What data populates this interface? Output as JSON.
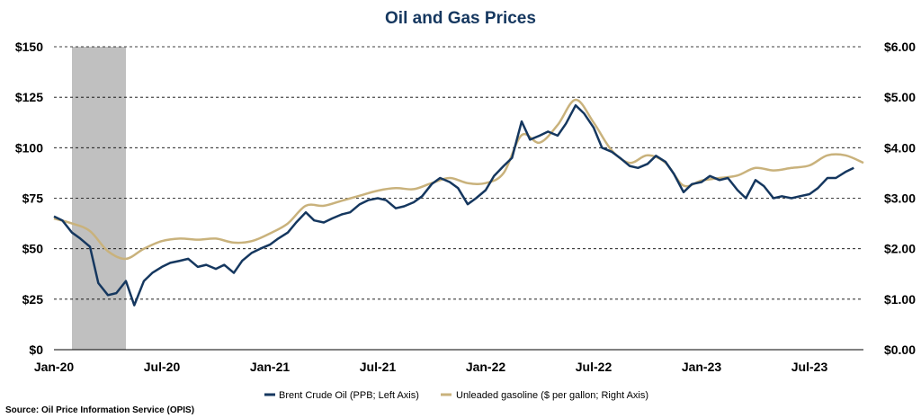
{
  "chart_data": {
    "type": "line",
    "title": "Oil and Gas Prices",
    "source": "Source: Oil Price Information Service (OPIS)",
    "x_tick_labels": [
      "Jan-20",
      "Jul-20",
      "Jan-21",
      "Jul-21",
      "Jan-22",
      "Jul-22",
      "Jan-23",
      "Jul-23"
    ],
    "y_left": {
      "ticks": [
        "$0",
        "$25",
        "$50",
        "$75",
        "$100",
        "$125",
        "$150"
      ],
      "range": [
        0,
        150
      ]
    },
    "y_right": {
      "ticks": [
        "$0.00",
        "$1.00",
        "$2.00",
        "$3.00",
        "$4.00",
        "$5.00",
        "$6.00"
      ],
      "range": [
        0,
        6
      ]
    },
    "x_range": [
      "2020-01",
      "2023-10"
    ],
    "shaded_period": {
      "start": "2020-02",
      "end": "2020-05"
    },
    "grid": "horizontal dashed",
    "legend_placement": "bottom",
    "colors": {
      "brent": "#15375f",
      "gasoline": "#c9b27c",
      "shade": "#c0c0c0"
    },
    "series": [
      {
        "name": "Brent Crude Oil (PPB; Left Axis)",
        "axis": "left",
        "points": [
          [
            "2020-01-01",
            66
          ],
          [
            "2020-01-15",
            64
          ],
          [
            "2020-02-01",
            58
          ],
          [
            "2020-02-15",
            55
          ],
          [
            "2020-03-01",
            51
          ],
          [
            "2020-03-15",
            33
          ],
          [
            "2020-04-01",
            27
          ],
          [
            "2020-04-15",
            28
          ],
          [
            "2020-05-01",
            34
          ],
          [
            "2020-05-15",
            22
          ],
          [
            "2020-06-01",
            34
          ],
          [
            "2020-06-15",
            38
          ],
          [
            "2020-07-01",
            41
          ],
          [
            "2020-07-15",
            43
          ],
          [
            "2020-08-01",
            44
          ],
          [
            "2020-08-15",
            45
          ],
          [
            "2020-09-01",
            41
          ],
          [
            "2020-09-15",
            42
          ],
          [
            "2020-10-01",
            40
          ],
          [
            "2020-10-15",
            42
          ],
          [
            "2020-11-01",
            38
          ],
          [
            "2020-11-15",
            44
          ],
          [
            "2020-12-01",
            48
          ],
          [
            "2020-12-15",
            50
          ],
          [
            "2021-01-01",
            52
          ],
          [
            "2021-01-15",
            55
          ],
          [
            "2021-02-01",
            58
          ],
          [
            "2021-02-15",
            63
          ],
          [
            "2021-03-01",
            68
          ],
          [
            "2021-03-15",
            64
          ],
          [
            "2021-04-01",
            63
          ],
          [
            "2021-04-15",
            65
          ],
          [
            "2021-05-01",
            67
          ],
          [
            "2021-05-15",
            68
          ],
          [
            "2021-06-01",
            72
          ],
          [
            "2021-06-15",
            74
          ],
          [
            "2021-07-01",
            75
          ],
          [
            "2021-07-15",
            74
          ],
          [
            "2021-08-01",
            70
          ],
          [
            "2021-08-15",
            71
          ],
          [
            "2021-09-01",
            73
          ],
          [
            "2021-09-15",
            76
          ],
          [
            "2021-10-01",
            82
          ],
          [
            "2021-10-15",
            85
          ],
          [
            "2021-11-01",
            83
          ],
          [
            "2021-11-15",
            80
          ],
          [
            "2021-12-01",
            72
          ],
          [
            "2021-12-15",
            75
          ],
          [
            "2022-01-01",
            79
          ],
          [
            "2022-01-15",
            86
          ],
          [
            "2022-02-01",
            91
          ],
          [
            "2022-02-15",
            95
          ],
          [
            "2022-03-01",
            113
          ],
          [
            "2022-03-15",
            104
          ],
          [
            "2022-04-01",
            106
          ],
          [
            "2022-04-15",
            108
          ],
          [
            "2022-05-01",
            106
          ],
          [
            "2022-05-15",
            112
          ],
          [
            "2022-06-01",
            121
          ],
          [
            "2022-06-15",
            117
          ],
          [
            "2022-07-01",
            110
          ],
          [
            "2022-07-15",
            100
          ],
          [
            "2022-08-01",
            98
          ],
          [
            "2022-08-15",
            95
          ],
          [
            "2022-09-01",
            91
          ],
          [
            "2022-09-15",
            90
          ],
          [
            "2022-10-01",
            92
          ],
          [
            "2022-10-15",
            96
          ],
          [
            "2022-11-01",
            93
          ],
          [
            "2022-11-15",
            87
          ],
          [
            "2022-12-01",
            78
          ],
          [
            "2022-12-15",
            82
          ],
          [
            "2023-01-01",
            83
          ],
          [
            "2023-01-15",
            86
          ],
          [
            "2023-02-01",
            84
          ],
          [
            "2023-02-15",
            85
          ],
          [
            "2023-03-01",
            79
          ],
          [
            "2023-03-15",
            75
          ],
          [
            "2023-04-01",
            84
          ],
          [
            "2023-04-15",
            81
          ],
          [
            "2023-05-01",
            75
          ],
          [
            "2023-05-15",
            76
          ],
          [
            "2023-06-01",
            75
          ],
          [
            "2023-06-15",
            76
          ],
          [
            "2023-07-01",
            77
          ],
          [
            "2023-07-15",
            80
          ],
          [
            "2023-08-01",
            85
          ],
          [
            "2023-08-15",
            85
          ],
          [
            "2023-09-01",
            88
          ],
          [
            "2023-09-15",
            90
          ]
        ]
      },
      {
        "name": "Unleaded gasoline ($ per gallon; Right Axis)",
        "axis": "right",
        "points": [
          [
            "2020-01-01",
            2.6
          ],
          [
            "2020-02-01",
            2.5
          ],
          [
            "2020-03-01",
            2.35
          ],
          [
            "2020-04-01",
            1.95
          ],
          [
            "2020-05-01",
            1.8
          ],
          [
            "2020-06-01",
            2.0
          ],
          [
            "2020-07-01",
            2.15
          ],
          [
            "2020-08-01",
            2.2
          ],
          [
            "2020-09-01",
            2.18
          ],
          [
            "2020-10-01",
            2.2
          ],
          [
            "2020-11-01",
            2.12
          ],
          [
            "2020-12-01",
            2.15
          ],
          [
            "2021-01-01",
            2.3
          ],
          [
            "2021-02-01",
            2.5
          ],
          [
            "2021-03-01",
            2.85
          ],
          [
            "2021-04-01",
            2.85
          ],
          [
            "2021-05-01",
            2.95
          ],
          [
            "2021-06-01",
            3.05
          ],
          [
            "2021-07-01",
            3.15
          ],
          [
            "2021-08-01",
            3.2
          ],
          [
            "2021-09-01",
            3.18
          ],
          [
            "2021-10-01",
            3.3
          ],
          [
            "2021-11-01",
            3.4
          ],
          [
            "2021-12-01",
            3.3
          ],
          [
            "2022-01-01",
            3.3
          ],
          [
            "2022-02-01",
            3.5
          ],
          [
            "2022-03-01",
            4.25
          ],
          [
            "2022-04-01",
            4.1
          ],
          [
            "2022-05-01",
            4.45
          ],
          [
            "2022-06-01",
            4.95
          ],
          [
            "2022-07-01",
            4.5
          ],
          [
            "2022-08-01",
            3.95
          ],
          [
            "2022-09-01",
            3.7
          ],
          [
            "2022-10-01",
            3.85
          ],
          [
            "2022-11-01",
            3.7
          ],
          [
            "2022-12-01",
            3.25
          ],
          [
            "2023-01-01",
            3.35
          ],
          [
            "2023-02-01",
            3.4
          ],
          [
            "2023-03-01",
            3.45
          ],
          [
            "2023-04-01",
            3.6
          ],
          [
            "2023-05-01",
            3.55
          ],
          [
            "2023-06-01",
            3.6
          ],
          [
            "2023-07-01",
            3.65
          ],
          [
            "2023-08-01",
            3.85
          ],
          [
            "2023-09-01",
            3.85
          ],
          [
            "2023-10-01",
            3.7
          ]
        ]
      }
    ]
  }
}
